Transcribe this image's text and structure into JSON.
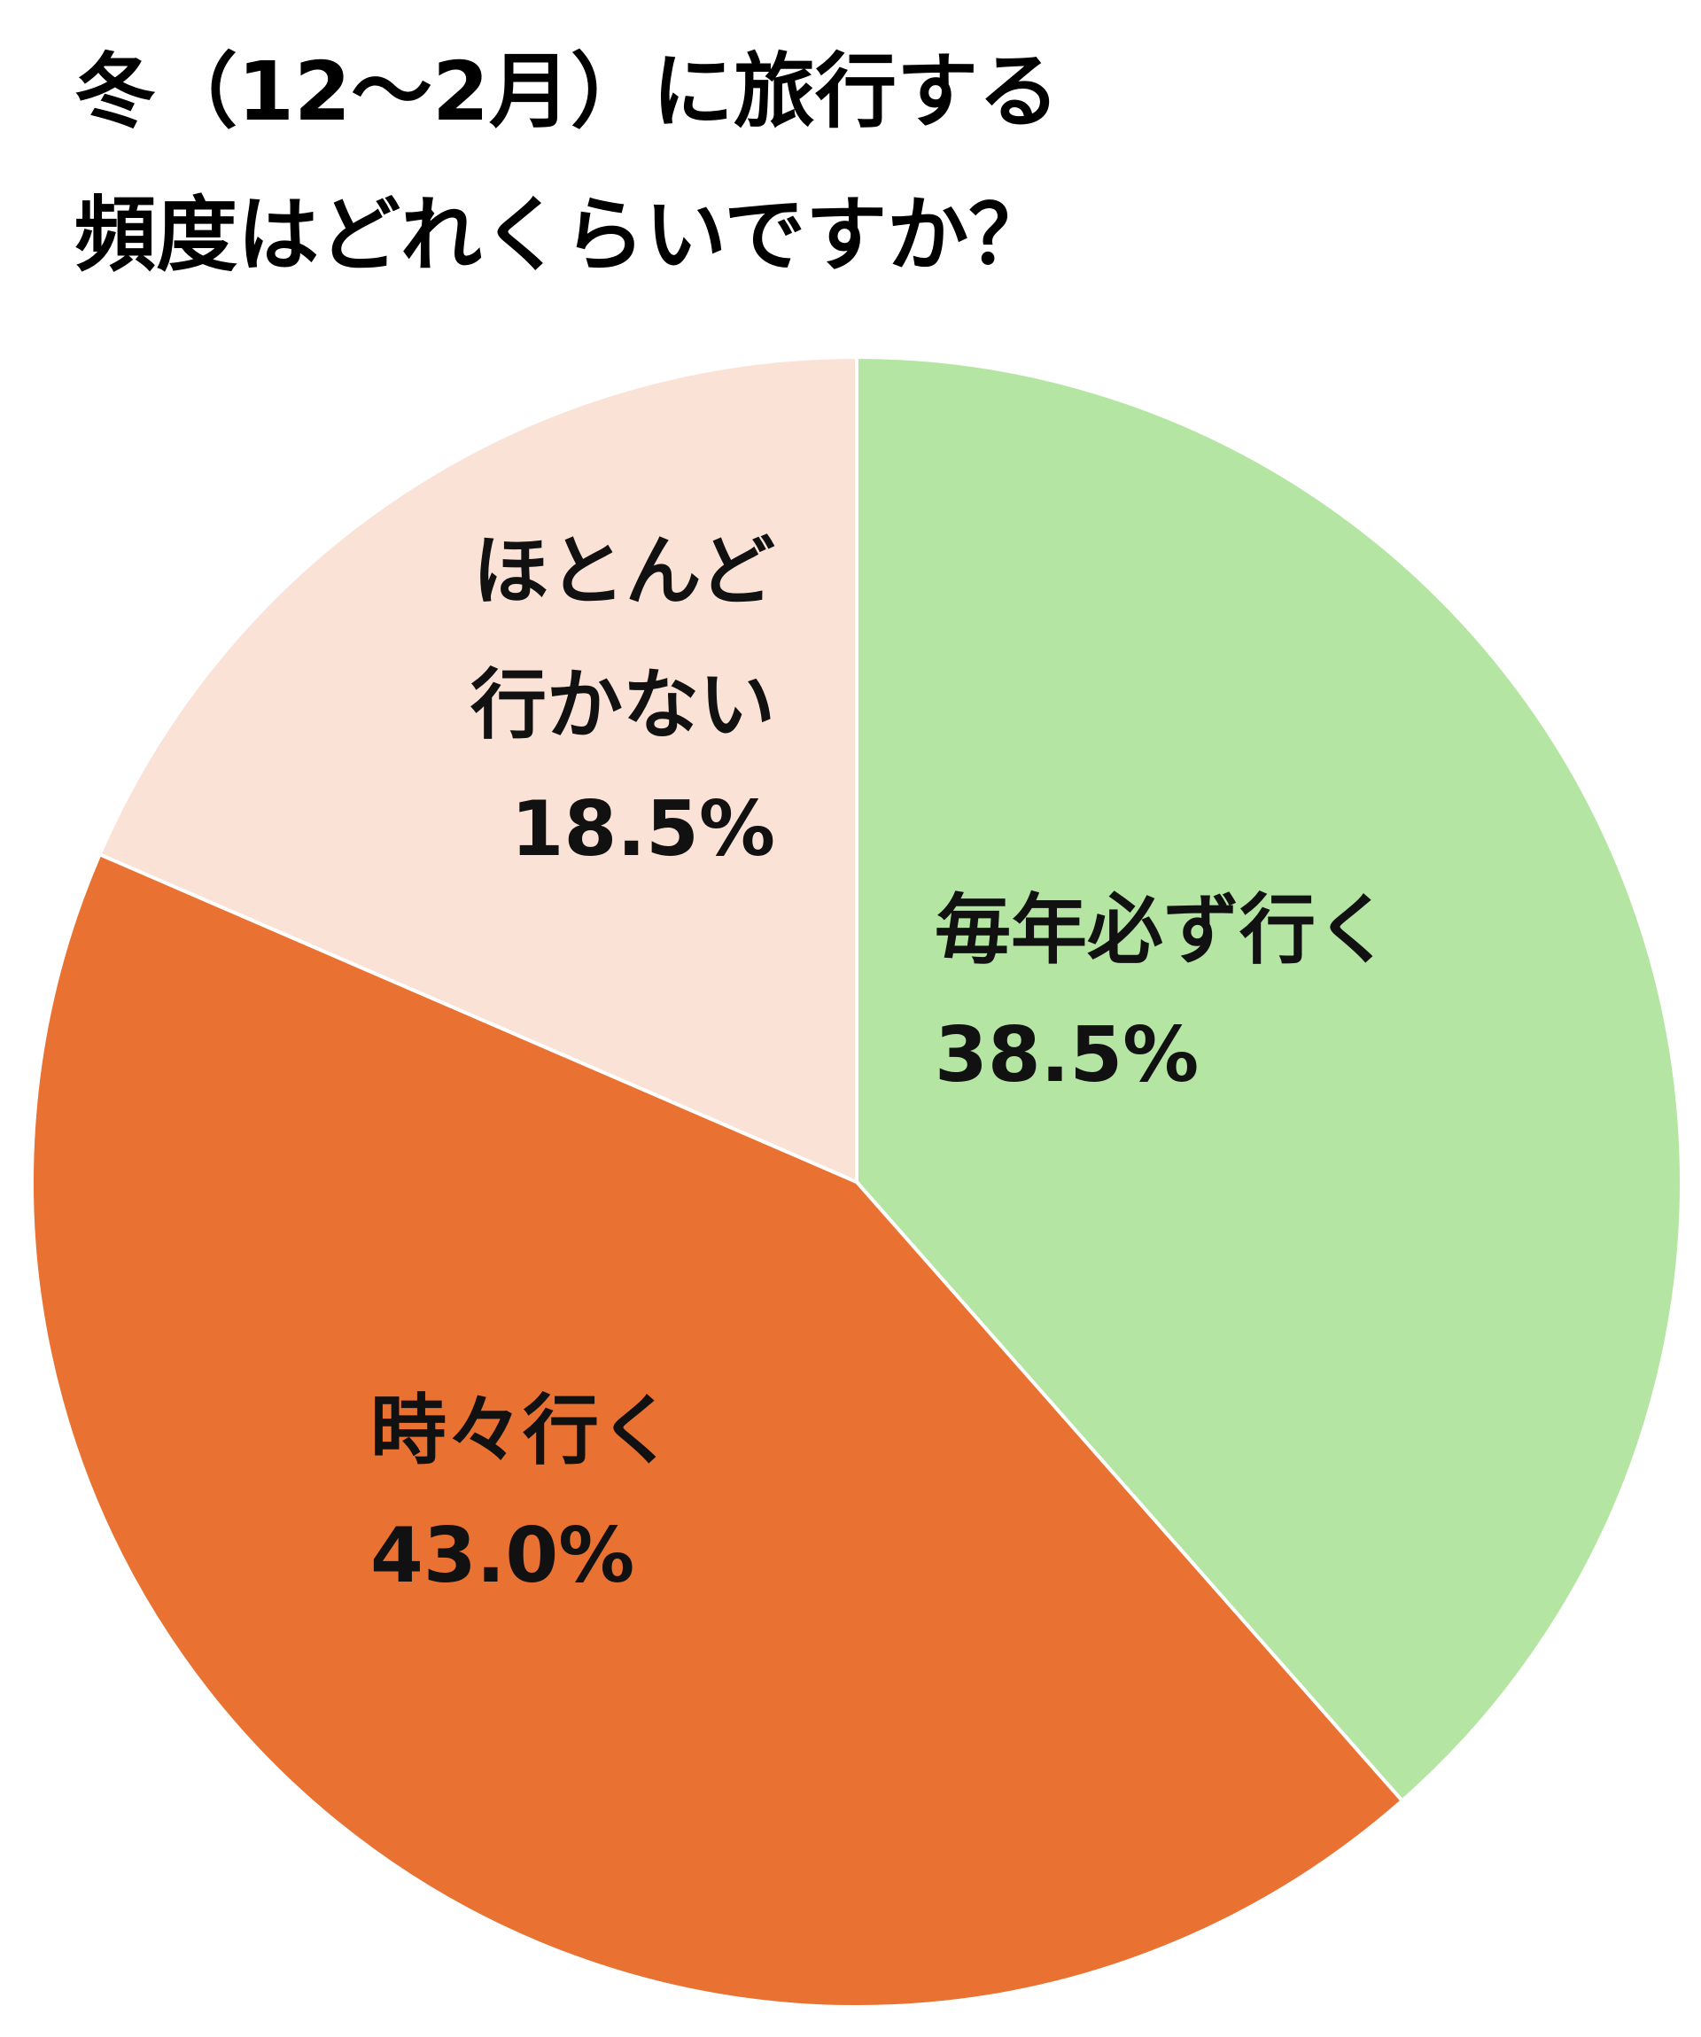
{
  "chart_data": {
    "type": "pie",
    "title": [
      "冬（12～2月）に旅行する",
      "頻度はどれくらいですか？"
    ],
    "categories": [
      "毎年必ず行く",
      "時々行く",
      "ほとんど行かない"
    ],
    "values": [
      38.5,
      43.0,
      18.5
    ],
    "value_labels": [
      "38.5%",
      "43.0%",
      "18.5%"
    ],
    "colors": [
      "#b5e5a2",
      "#e97132",
      "#fbe2d6"
    ]
  }
}
